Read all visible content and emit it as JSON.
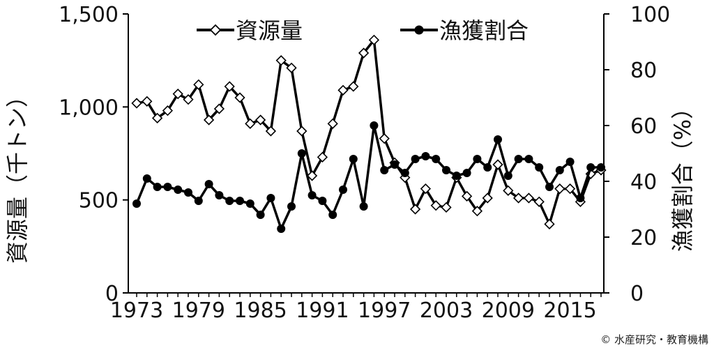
{
  "chart_data": {
    "type": "line",
    "x": [
      1973,
      1974,
      1975,
      1976,
      1977,
      1978,
      1979,
      1980,
      1981,
      1982,
      1983,
      1984,
      1985,
      1986,
      1987,
      1988,
      1989,
      1990,
      1991,
      1992,
      1993,
      1994,
      1995,
      1996,
      1997,
      1998,
      1999,
      2000,
      2001,
      2002,
      2003,
      2004,
      2005,
      2006,
      2007,
      2008,
      2009,
      2010,
      2011,
      2012,
      2013,
      2014,
      2015,
      2016,
      2017,
      2018
    ],
    "series": [
      {
        "name": "資源量",
        "axis": "left",
        "marker": "open-diamond",
        "values": [
          1020,
          1030,
          940,
          980,
          1070,
          1040,
          1120,
          930,
          990,
          1110,
          1050,
          910,
          930,
          870,
          1250,
          1210,
          870,
          630,
          730,
          910,
          1090,
          1110,
          1290,
          1360,
          830,
          700,
          620,
          450,
          560,
          470,
          460,
          620,
          520,
          440,
          510,
          690,
          550,
          510,
          510,
          490,
          370,
          560,
          560,
          490,
          640,
          660
        ]
      },
      {
        "name": "漁獲割合",
        "axis": "right",
        "marker": "filled-circle",
        "values": [
          32,
          41,
          38,
          38,
          37,
          36,
          33,
          39,
          35,
          33,
          33,
          32,
          28,
          34,
          23,
          31,
          50,
          35,
          33,
          28,
          37,
          48,
          31,
          60,
          44,
          46,
          43,
          48,
          49,
          48,
          44,
          42,
          43,
          48,
          45,
          55,
          42,
          48,
          48,
          45,
          38,
          44,
          47,
          34,
          45,
          45
        ]
      }
    ],
    "xticks": [
      1973,
      1979,
      1985,
      1991,
      1997,
      2003,
      2009,
      2015
    ],
    "xtick_labels": [
      "1973",
      "1979",
      "1985",
      "1991",
      "1997",
      "2003",
      "2009",
      "2015"
    ],
    "ylim_left": [
      0,
      1500
    ],
    "yticks_left": [
      0,
      500,
      1000,
      1500
    ],
    "ytick_labels_left": [
      "0",
      "500",
      "1,000",
      "1,500"
    ],
    "ylim_right": [
      0,
      100
    ],
    "yticks_right": [
      0,
      20,
      40,
      60,
      80,
      100
    ],
    "ytick_labels_right": [
      "0",
      "20",
      "40",
      "60",
      "80",
      "100"
    ],
    "ylabel_left": "資源量（千トン）",
    "ylabel_right": "漁獲割合（%）",
    "legend_position": "top",
    "grid": false,
    "line_color": "#000000"
  },
  "credit": "© 水産研究・教育機構"
}
